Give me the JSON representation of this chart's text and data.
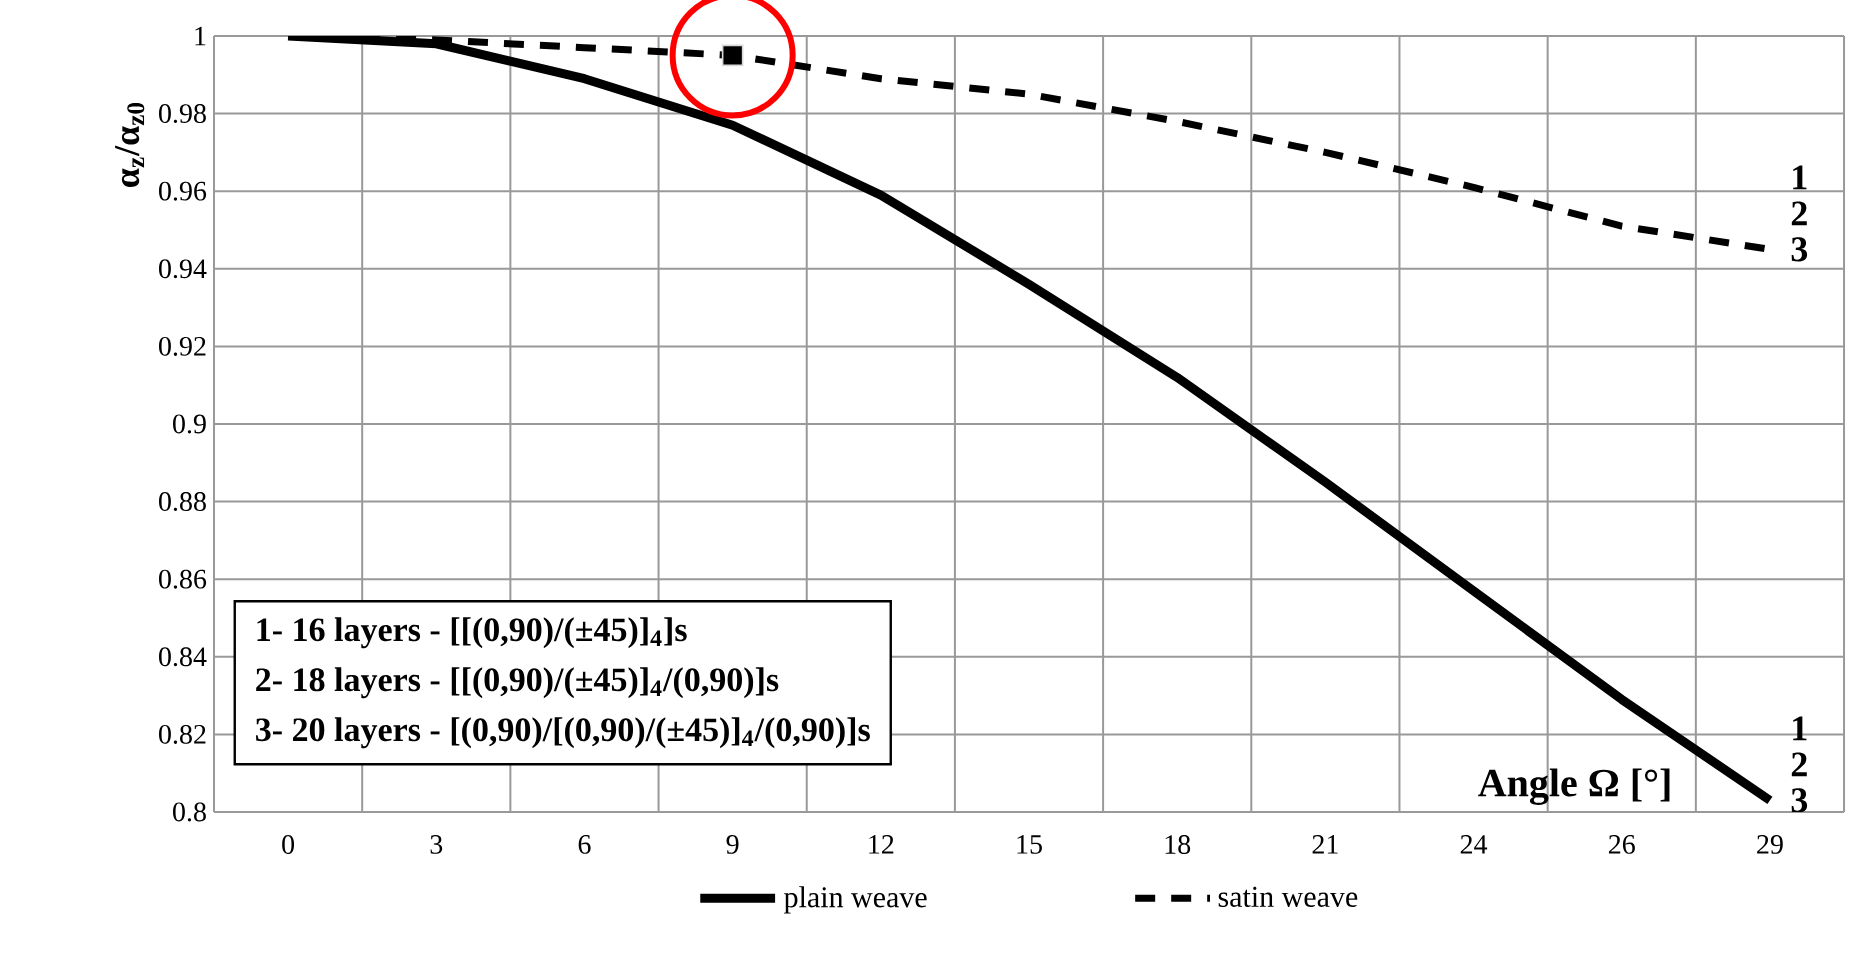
{
  "chart_data": {
    "type": "line",
    "xlabel": "Angle Ω [°]",
    "ylabel": "α$_{z}$/α$_{z0}$",
    "categories": [
      "0",
      "3",
      "6",
      "9",
      "12",
      "15",
      "18",
      "21",
      "24",
      "26",
      "29"
    ],
    "series": [
      {
        "name": "plain weave",
        "color": "#000000",
        "line_style": "solid",
        "values": [
          1.0,
          0.998,
          0.989,
          0.977,
          0.959,
          0.936,
          0.912,
          0.885,
          0.857,
          0.829,
          0.803
        ]
      },
      {
        "name": "satin weave",
        "color": "#000000",
        "line_style": "dashed",
        "values": [
          1.0,
          0.999,
          0.997,
          0.995,
          0.989,
          0.985,
          0.978,
          0.97,
          0.961,
          0.951,
          0.945
        ]
      },
      {
        "type": "scatter",
        "marker": "square",
        "color": "#000000",
        "x": [
          "9"
        ],
        "values": [
          0.995
        ]
      }
    ],
    "ylim": [
      0.8,
      1
    ],
    "yticks": [
      0.8,
      0.82,
      0.84,
      0.86,
      0.88,
      0.9,
      0.92,
      0.94,
      0.96,
      0.98,
      1
    ],
    "grid": true,
    "legend": "bottom",
    "annotations": [
      "1- 16 layers - [[(0,90)/(±45)]$_{4}$]s",
      "2- 18 layers - [[(0,90)/(±45)]$_{4}$/(0,90)]s",
      "3- 20 layers - [(0,90)/[(0,90)/(±45)]$_{4}$/(0,90)]s",
      "1",
      "2",
      "3",
      "1",
      "2",
      "3"
    ]
  }
}
